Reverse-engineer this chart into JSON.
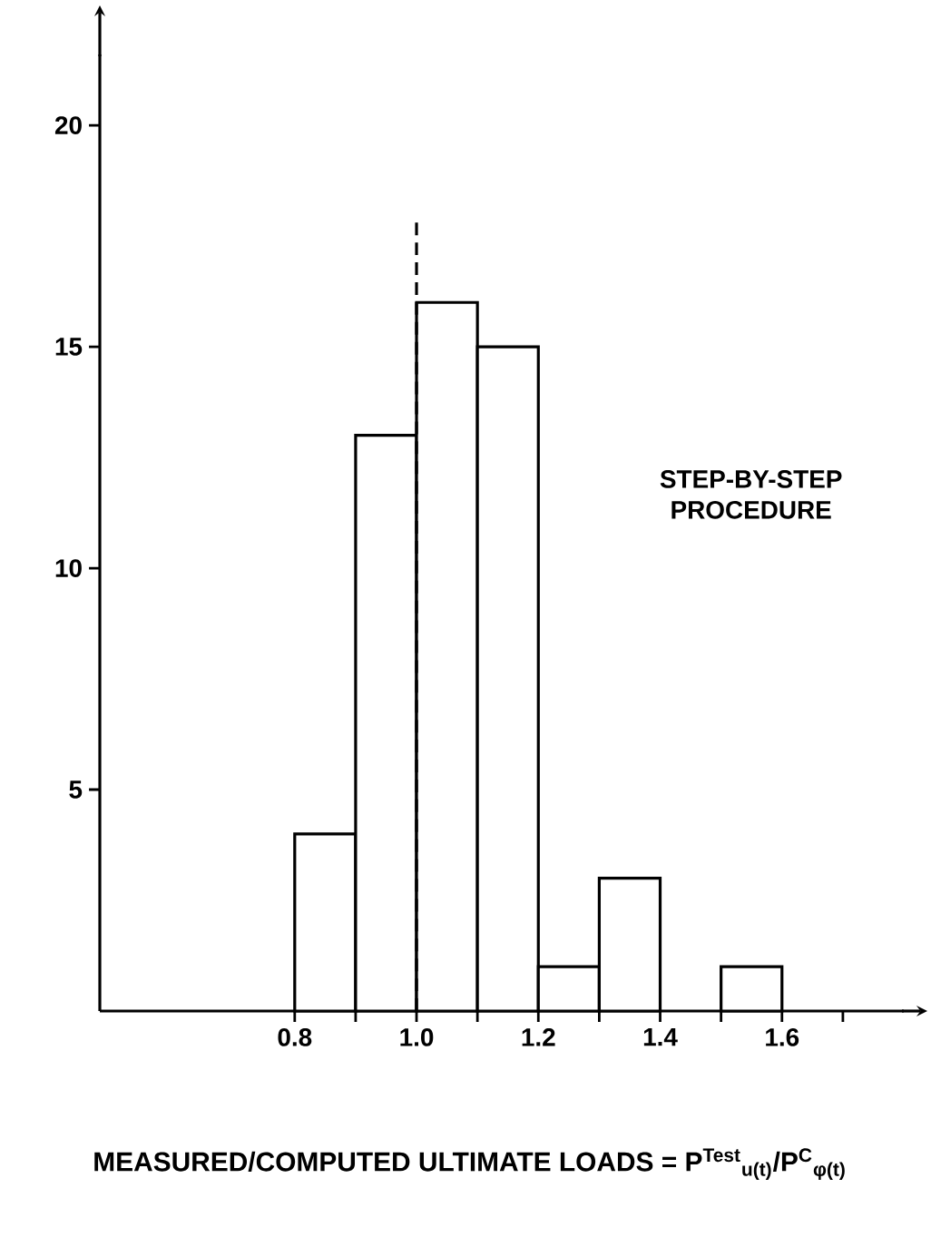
{
  "chart_data": {
    "type": "histogram",
    "bins": [
      0.8,
      0.9,
      1.0,
      1.1,
      1.2,
      1.3,
      1.4,
      1.5,
      1.6
    ],
    "values": [
      4,
      13,
      16,
      15,
      1,
      3,
      0,
      1
    ],
    "color": "#000000",
    "xlim": [
      0.48,
      1.8
    ],
    "ylim": [
      0,
      21.6
    ],
    "xticks": [
      0.8,
      {
        "value": 0.9,
        "label": null
      },
      {
        "value": 1.0,
        "label": "1.0"
      },
      {
        "value": 1.1,
        "label": null
      },
      1.2,
      {
        "value": 1.3,
        "label": null
      },
      1.4,
      {
        "value": 1.5,
        "label": null
      },
      1.6,
      {
        "value": 1.7,
        "label": null
      }
    ],
    "yticks": [
      5,
      10,
      15,
      20
    ],
    "xlabel": "MEASURED/COMPUTED ULTIMATE LOADS = P$^{Test}$$_{u(t)}$/P$^{C}$$_{φ(t)}$",
    "annotations": [
      "STEP-BY-STEP PROCEDURE"
    ],
    "ref_lines": [
      {
        "axis": "x",
        "value": 1.0,
        "line_style": "dashed"
      }
    ]
  }
}
